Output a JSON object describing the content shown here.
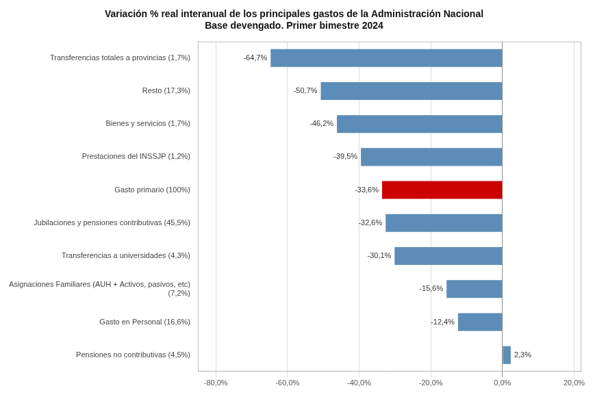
{
  "chart_data": {
    "type": "bar",
    "orientation": "horizontal",
    "title": "Variación % real interanual de los principales gastos de la Administración Nacional\nBase devengado. Primer bimestre 2024",
    "categories": [
      "Transferencias totales a provincias (1,7%)",
      "Resto (17,3%)",
      "Bienes y servicios (1,7%)",
      "Prestaciones del INSSJP (1,2%)",
      "Gasto primario (100%)",
      "Jubilaciones y pensiones contributivas (45,5%)",
      "Transferencias a universidades (4,3%)",
      "Asignaciones Familiares (AUH + Activos, pasivos, etc)\n(7,2%)",
      "Gasto en Personal (16,6%)",
      "Pensiones no contributivas (4,5%)"
    ],
    "values": [
      -64.7,
      -50.7,
      -46.2,
      -39.5,
      -33.6,
      -32.6,
      -30.1,
      -15.6,
      -12.4,
      2.3
    ],
    "value_labels": [
      "-64,7%",
      "-50,7%",
      "-46,2%",
      "-39,5%",
      "-33,6%",
      "-32,6%",
      "-30,1%",
      "-15,6%",
      "-12,4%",
      "2,3%"
    ],
    "data_labels": true,
    "colors": [
      "#5b8db8",
      "#5b8db8",
      "#5b8db8",
      "#5b8db8",
      "#cc0000",
      "#5b8db8",
      "#5b8db8",
      "#5b8db8",
      "#5b8db8",
      "#5b8db8"
    ],
    "xlim": [
      -85,
      22
    ],
    "xticks": [
      {
        "value": -80,
        "label": "-80,0%"
      },
      {
        "value": -60,
        "label": "-60,0%"
      },
      {
        "value": -40,
        "label": "-40,0%"
      },
      {
        "value": -20,
        "label": "-20,0%"
      },
      {
        "value": 0,
        "label": "0,0%"
      },
      {
        "value": 20,
        "label": "20,0%"
      }
    ],
    "grid": true
  }
}
